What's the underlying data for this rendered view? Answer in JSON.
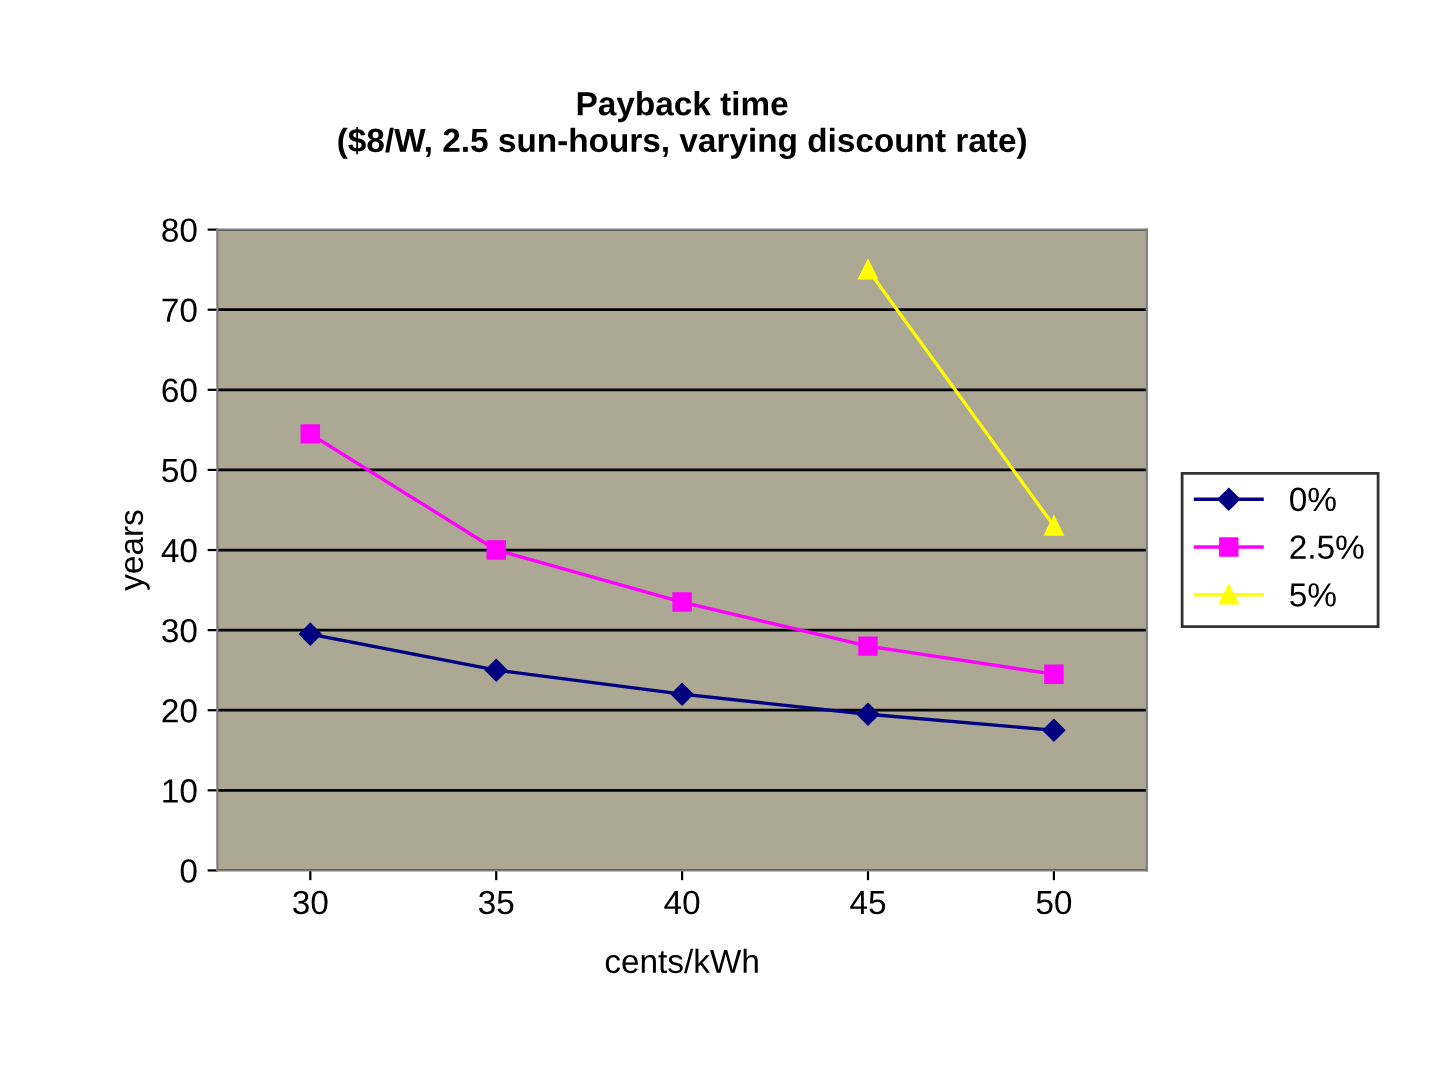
{
  "chart_data": {
    "type": "line",
    "title": "Payback time\n($8/W, 2.5 sun-hours, varying discount rate)",
    "xlabel": "cents/kWh",
    "ylabel": "years",
    "categories": [
      "30",
      "35",
      "40",
      "45",
      "50"
    ],
    "series": [
      {
        "name": "0%",
        "color": "#000080",
        "marker": "diamond",
        "values": [
          29.5,
          25,
          22,
          19.5,
          17.5
        ]
      },
      {
        "name": "2.5%",
        "color": "#ff00ff",
        "marker": "square",
        "values": [
          54.5,
          40,
          33.5,
          28,
          24.5
        ]
      },
      {
        "name": "5%",
        "color": "#ffff00",
        "marker": "triangle",
        "values": [
          null,
          null,
          null,
          75,
          43
        ]
      }
    ],
    "ylim": [
      0,
      80
    ],
    "yticks": [
      0,
      10,
      20,
      30,
      40,
      50,
      60,
      70,
      80
    ],
    "grid": "y",
    "legend": "right",
    "line_style": "solid"
  }
}
